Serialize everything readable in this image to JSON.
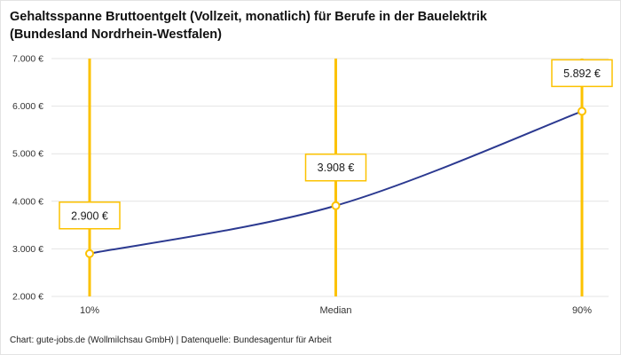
{
  "header": {
    "title_lines": [
      "Gehaltsspanne Bruttoentgelt (Vollzeit, monatlich) für Berufe in der Bauelektrik",
      "(Bundesland Nordrhein-Westfalen)"
    ]
  },
  "footer": {
    "text": "Chart: gute-jobs.de (Wollmilchsau GmbH) | Datenquelle: Bundesagentur für Arbeit"
  },
  "chart_data": {
    "type": "line",
    "title": "Gehaltsspanne Bruttoentgelt (Vollzeit, monatlich) für Berufe in der Bauelektrik (Bundesland Nordrhein-Westfalen)",
    "categories": [
      "10%",
      "Median",
      "90%"
    ],
    "values": [
      2900,
      3908,
      5892
    ],
    "value_labels": [
      "2.900 €",
      "3.908 €",
      "5.892 €"
    ],
    "xlabel": "",
    "ylabel": "",
    "ylim": [
      2000,
      7000
    ],
    "ytick_step": 1000,
    "ytick_labels": [
      "2.000 €",
      "3.000 €",
      "4.000 €",
      "5.000 €",
      "6.000 €",
      "7.000 €"
    ],
    "grid": true,
    "legend": false,
    "colors": {
      "line": "#2b3990",
      "accent_yellow": "#fcc200",
      "grid": "#e4e4e4",
      "label_border": "#fcc200",
      "text_dark": "#1a1a1a",
      "axis_text": "#333333"
    }
  }
}
